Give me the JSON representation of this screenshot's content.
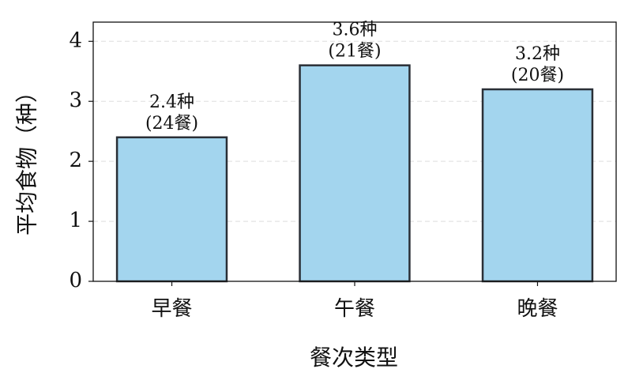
{
  "chart_data": {
    "type": "bar",
    "categories": [
      "早餐",
      "午餐",
      "晚餐"
    ],
    "values": [
      2.4,
      3.6,
      3.2
    ],
    "value_labels": [
      "2.4种\n(24餐)",
      "3.6种\n(21餐)",
      "3.2种\n(20餐)"
    ],
    "color": "#a3d5ee",
    "edge_color": "#2a2f36",
    "xlabel": "餐次类型",
    "ylabel": "平均食物（种）",
    "ylim": [
      0,
      4.32
    ],
    "yticks": [
      0,
      1,
      2,
      3,
      4
    ],
    "grid": true
  }
}
